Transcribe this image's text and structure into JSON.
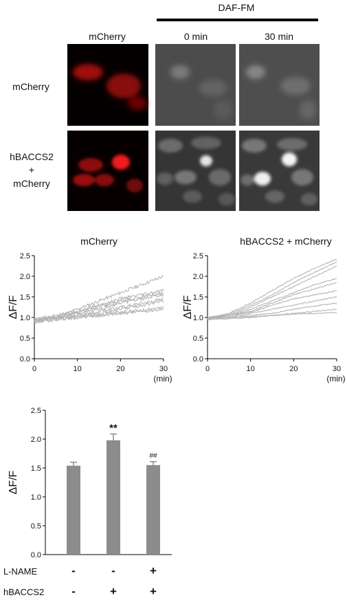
{
  "panelA": {
    "header_group": "DAF-FM",
    "col_labels": [
      "mCherry",
      "0 min",
      "30 min"
    ],
    "row_labels": [
      [
        "mCherry"
      ],
      [
        "hBACCS2",
        "+",
        "mCherry"
      ]
    ]
  },
  "chart_data": [
    {
      "type": "line",
      "title": "mCherry",
      "xlabel": "(min)",
      "ylabel": "ΔF/F",
      "xlim": [
        0,
        30
      ],
      "ylim": [
        0,
        2.5
      ],
      "xticks": [
        0,
        10,
        20,
        30
      ],
      "yticks": [
        0.0,
        0.5,
        1.0,
        1.5,
        2.0,
        2.5
      ],
      "yticklabels": [
        "0.0",
        "0.5",
        "1.0",
        "1.5",
        "2.0",
        "2.5"
      ],
      "line_color": "#b4b4b4",
      "noise": 0.04,
      "x": [
        0,
        5,
        10,
        15,
        20,
        25,
        30
      ],
      "series": [
        {
          "values": [
            0.95,
            1.0,
            1.2,
            1.4,
            1.6,
            1.8,
            2.0
          ]
        },
        {
          "values": [
            0.92,
            1.0,
            1.15,
            1.3,
            1.45,
            1.55,
            1.65
          ]
        },
        {
          "values": [
            0.95,
            1.05,
            1.15,
            1.25,
            1.4,
            1.5,
            1.6
          ]
        },
        {
          "values": [
            0.9,
            1.0,
            1.1,
            1.2,
            1.35,
            1.45,
            1.55
          ]
        },
        {
          "values": [
            0.92,
            0.98,
            1.05,
            1.15,
            1.25,
            1.35,
            1.45
          ]
        },
        {
          "values": [
            0.95,
            1.0,
            1.05,
            1.1,
            1.2,
            1.3,
            1.4
          ]
        },
        {
          "values": [
            0.88,
            0.95,
            1.0,
            1.05,
            1.1,
            1.15,
            1.2
          ]
        },
        {
          "values": [
            0.9,
            0.96,
            1.0,
            1.05,
            1.12,
            1.18,
            1.25
          ]
        }
      ]
    },
    {
      "type": "line",
      "title": "hBACCS2 + mCherry",
      "xlabel": "(min)",
      "ylabel": "ΔF/F",
      "xlim": [
        0,
        30
      ],
      "ylim": [
        0,
        2.5
      ],
      "xticks": [
        0,
        10,
        20,
        30
      ],
      "yticks": [
        0.0,
        0.5,
        1.0,
        1.5,
        2.0,
        2.5
      ],
      "yticklabels": [
        "0.0",
        "0.5",
        "1.0",
        "1.5",
        "2.0",
        "2.5"
      ],
      "line_color": "#b4b4b4",
      "noise": 0.012,
      "x": [
        0,
        5,
        10,
        15,
        20,
        25,
        30
      ],
      "series": [
        {
          "values": [
            1.0,
            1.1,
            1.35,
            1.65,
            1.95,
            2.2,
            2.42
          ]
        },
        {
          "values": [
            0.98,
            1.08,
            1.3,
            1.55,
            1.85,
            2.1,
            2.35
          ]
        },
        {
          "values": [
            1.0,
            1.05,
            1.25,
            1.5,
            1.75,
            2.0,
            2.25
          ]
        },
        {
          "values": [
            0.97,
            1.05,
            1.2,
            1.4,
            1.6,
            1.8,
            1.95
          ]
        },
        {
          "values": [
            1.0,
            1.05,
            1.15,
            1.35,
            1.55,
            1.7,
            1.85
          ]
        },
        {
          "values": [
            1.0,
            1.05,
            1.12,
            1.3,
            1.45,
            1.55,
            1.65
          ]
        },
        {
          "values": [
            0.98,
            1.02,
            1.1,
            1.2,
            1.3,
            1.4,
            1.5
          ]
        },
        {
          "values": [
            0.95,
            1.0,
            1.05,
            1.1,
            1.2,
            1.28,
            1.35
          ]
        },
        {
          "values": [
            0.95,
            0.97,
            1.0,
            1.05,
            1.1,
            1.15,
            1.2
          ]
        },
        {
          "values": [
            0.97,
            1.0,
            1.02,
            1.05,
            1.08,
            1.1,
            1.12
          ]
        }
      ]
    },
    {
      "type": "bar",
      "ylabel": "ΔF/F",
      "ylim": [
        0,
        2.5
      ],
      "yticks": [
        0.0,
        0.5,
        1.0,
        1.5,
        2.0,
        2.5
      ],
      "yticklabels": [
        "0.0",
        "0.5",
        "1.0",
        "1.5",
        "2.0",
        "2.5"
      ],
      "bar_color": "#8c8c8c",
      "values": [
        1.54,
        1.98,
        1.55
      ],
      "errors": [
        0.06,
        0.11,
        0.06
      ],
      "annotations": [
        "",
        "**",
        "##"
      ],
      "factors": [
        {
          "label": "L-NAME",
          "levels": [
            "-",
            "-",
            "+"
          ]
        },
        {
          "label": "hBACCS2",
          "levels": [
            "-",
            "+",
            "+"
          ]
        }
      ]
    }
  ]
}
